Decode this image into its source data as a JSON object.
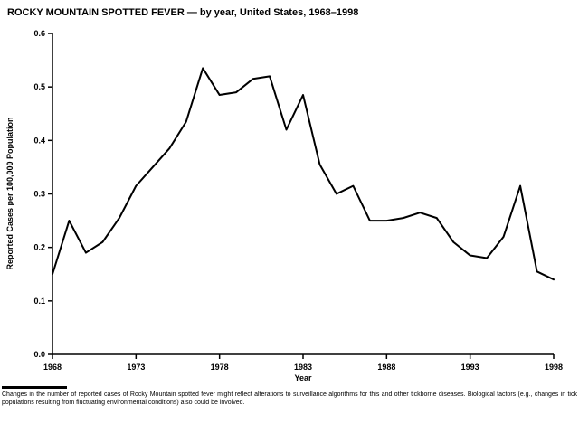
{
  "page": {
    "title": "ROCKY MOUNTAIN SPOTTED FEVER — by year, United States, 1968–1998",
    "footnote": "Changes in the number of reported cases of Rocky Mountain spotted fever might reflect alterations to surveillance algorithms for this and other tickborne diseases. Biological factors (e.g., changes in tick populations resulting from fluctuating environmental conditions) also could be involved."
  },
  "chart_data": {
    "type": "line",
    "title": "ROCKY MOUNTAIN SPOTTED FEVER — by year, United States, 1968–1998",
    "xlabel": "Year",
    "ylabel": "Reported Cases per 100,000 Population",
    "line_color": "#000000",
    "xlim": [
      1968,
      1998
    ],
    "ylim": [
      0,
      0.6
    ],
    "xticks": [
      1968,
      1973,
      1978,
      1983,
      1988,
      1993,
      1998
    ],
    "yticks": [
      0.0,
      0.1,
      0.2,
      0.3,
      0.4,
      0.5,
      0.6
    ],
    "grid": false,
    "legend": "none",
    "x": [
      1968,
      1969,
      1970,
      1971,
      1972,
      1973,
      1974,
      1975,
      1976,
      1977,
      1978,
      1979,
      1980,
      1981,
      1982,
      1983,
      1984,
      1985,
      1986,
      1987,
      1988,
      1989,
      1990,
      1991,
      1992,
      1993,
      1994,
      1995,
      1996,
      1997,
      1998
    ],
    "values": [
      0.15,
      0.25,
      0.19,
      0.21,
      0.255,
      0.315,
      0.35,
      0.385,
      0.435,
      0.535,
      0.485,
      0.49,
      0.515,
      0.52,
      0.42,
      0.485,
      0.355,
      0.3,
      0.315,
      0.25,
      0.25,
      0.255,
      0.265,
      0.255,
      0.21,
      0.185,
      0.18,
      0.22,
      0.315,
      0.155,
      0.14
    ]
  }
}
